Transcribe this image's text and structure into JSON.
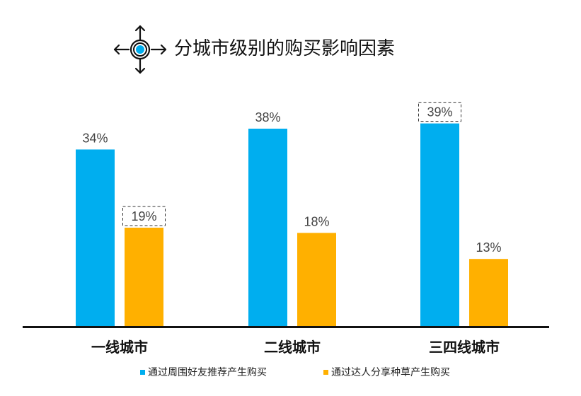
{
  "chart_data": {
    "type": "bar",
    "title": "分城市级别的购买影响因素",
    "categories": [
      "一线城市",
      "二线城市",
      "三四线城市"
    ],
    "series": [
      {
        "name": "通过周围好友推荐产生购买",
        "color": "#00AEEF",
        "values": [
          34,
          38,
          39
        ],
        "labels": [
          "34%",
          "38%",
          "39%"
        ]
      },
      {
        "name": "通过达人分享种草产生购买",
        "color": "#FFB000",
        "values": [
          19,
          18,
          13
        ],
        "labels": [
          "19%",
          "18%",
          "13%"
        ]
      }
    ],
    "highlighted_labels": [
      [
        1,
        0
      ],
      [
        0,
        2
      ]
    ],
    "ylim": [
      0,
      40
    ],
    "grid": false,
    "legend_position": "bottom",
    "title_icon": "target-arrows-icon"
  }
}
